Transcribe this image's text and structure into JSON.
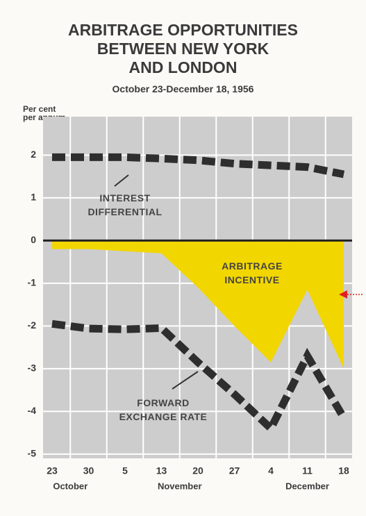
{
  "chart_data": {
    "type": "line",
    "title": [
      "ARBITRAGE OPPORTUNITIES",
      "BETWEEN NEW YORK",
      "AND LONDON"
    ],
    "subtitle": "October 23-December 18, 1956",
    "y_label": "Per cent per annum",
    "categories": [
      "23",
      "30",
      "5",
      "13",
      "20",
      "27",
      "4",
      "11",
      "18"
    ],
    "months": [
      {
        "name": "October",
        "count": 2
      },
      {
        "name": "November",
        "count": 4
      },
      {
        "name": "December",
        "count": 3
      }
    ],
    "ylim": [
      -5.1,
      2.9
    ],
    "yticks": [
      2,
      1,
      0,
      -1,
      -2,
      -3,
      -4,
      -5
    ],
    "grid": true,
    "series": [
      {
        "name": "INTEREST DIFFERENTIAL",
        "style": "dashed",
        "color": "#2e2e2e",
        "values": [
          1.95,
          1.95,
          1.95,
          1.92,
          1.88,
          1.8,
          1.76,
          1.72,
          1.55
        ]
      },
      {
        "name": "FORWARD EXCHANGE RATE",
        "style": "dashed",
        "color": "#2e2e2e",
        "values": [
          -1.95,
          -2.06,
          -2.08,
          -2.05,
          -2.85,
          -3.6,
          -4.4,
          -2.7,
          -4.15
        ]
      },
      {
        "name": "ARBITRAGE INCENTIVE",
        "style": "area",
        "color": "#f2d600",
        "values": [
          -0.2,
          -0.2,
          -0.25,
          -0.3,
          -1.1,
          -2.0,
          -2.85,
          -1.15,
          -3.0
        ]
      }
    ]
  }
}
